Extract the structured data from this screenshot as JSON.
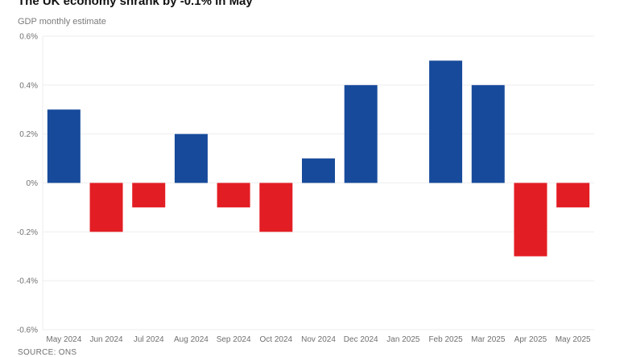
{
  "header": {
    "title": "The UK economy shrank by -0.1% in May",
    "subtitle": "GDP monthly estimate"
  },
  "footer": {
    "source": "SOURCE: ONS"
  },
  "colors": {
    "positive": "#174a9b",
    "negative": "#e31d24",
    "gridline": "#eeeeee",
    "axis_text": "#6f6f6f"
  },
  "chart_data": {
    "type": "bar",
    "title": "The UK economy shrank by -0.1% in May",
    "subtitle": "GDP monthly estimate",
    "xlabel": "",
    "ylabel": "",
    "categories": [
      "May 2024",
      "Jun 2024",
      "Jul 2024",
      "Aug 2024",
      "Sep 2024",
      "Oct 2024",
      "Nov 2024",
      "Dec 2024",
      "Jan 2025",
      "Feb 2025",
      "Mar 2025",
      "Apr 2025",
      "May 2025"
    ],
    "values": [
      0.3,
      -0.2,
      -0.1,
      0.2,
      -0.1,
      -0.2,
      0.1,
      0.4,
      0.0,
      0.5,
      0.4,
      -0.3,
      -0.1
    ],
    "unit": "%",
    "ylim": [
      -0.6,
      0.6
    ],
    "yticks": [
      0.6,
      0.4,
      0.2,
      0,
      -0.2,
      -0.4,
      -0.6
    ],
    "ytick_labels": [
      "0.6%",
      "0.4%",
      "0.2%",
      "0%",
      "-0.2%",
      "-0.4%",
      "-0.6%"
    ],
    "grid": true,
    "legend": "none"
  }
}
